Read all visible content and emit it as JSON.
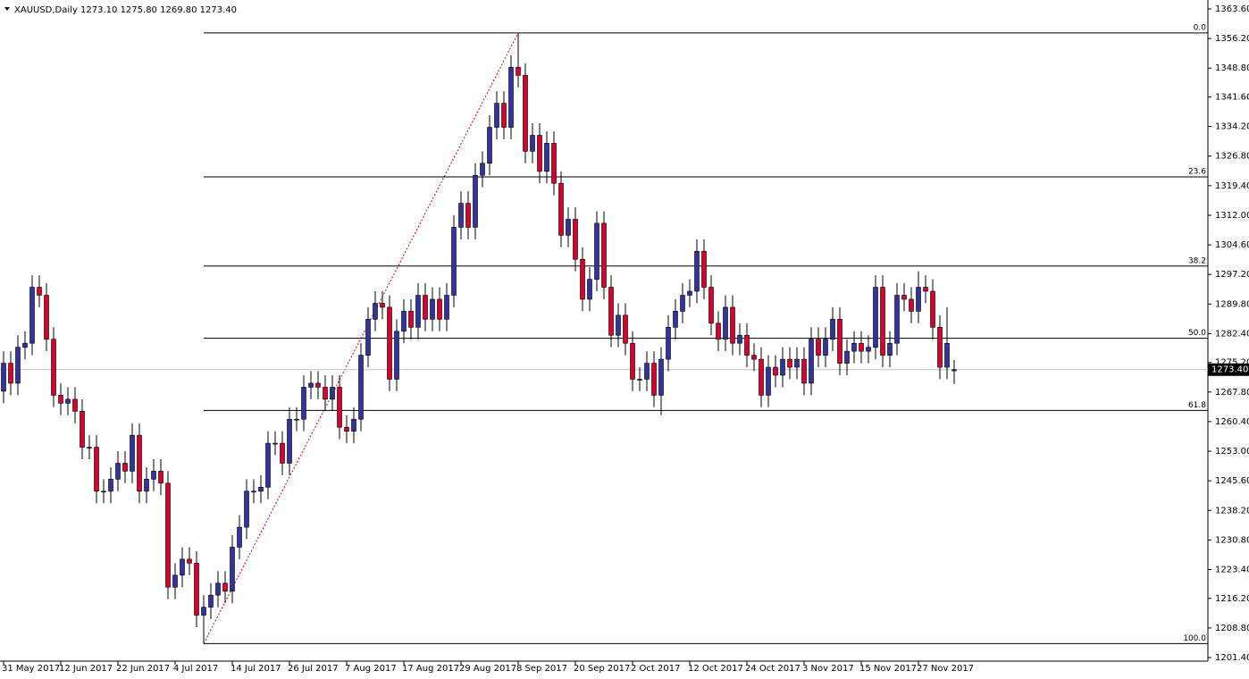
{
  "chart_data": {
    "type": "candlestick",
    "title": "XAUUSD,Daily  1273.10 1275.80 1269.80 1273.40",
    "up_color": "#33339c",
    "down_color": "#d8002d",
    "categories": [
      "31 May 2017",
      null,
      null,
      null,
      null,
      null,
      null,
      null,
      "12 Jun 2017",
      null,
      null,
      null,
      null,
      null,
      null,
      null,
      "22 Jun 2017",
      null,
      null,
      null,
      null,
      null,
      null,
      null,
      "4 Jul 2017",
      null,
      null,
      null,
      null,
      null,
      null,
      null,
      "14 Jul 2017",
      null,
      null,
      null,
      null,
      null,
      null,
      null,
      "26 Jul 2017",
      null,
      null,
      null,
      null,
      null,
      null,
      null,
      "7 Aug 2017",
      null,
      null,
      null,
      null,
      null,
      null,
      null,
      "17 Aug 2017",
      null,
      null,
      null,
      null,
      null,
      null,
      null,
      "29 Aug 2017",
      null,
      null,
      null,
      null,
      null,
      null,
      null,
      "8 Sep 2017",
      null,
      null,
      null,
      null,
      null,
      null,
      null,
      "20 Sep 2017",
      null,
      null,
      null,
      null,
      null,
      null,
      null,
      "2 Oct 2017",
      null,
      null,
      null,
      null,
      null,
      null,
      null,
      "12 Oct 2017",
      null,
      null,
      null,
      null,
      null,
      null,
      null,
      "24 Oct 2017",
      null,
      null,
      null,
      null,
      null,
      null,
      null,
      "3 Nov 2017",
      null,
      null,
      null,
      null,
      null,
      null,
      null,
      "15 Nov 2017",
      null,
      null,
      null,
      null,
      null,
      null,
      null,
      "27 Nov 2017",
      null,
      null,
      null,
      null,
      null
    ],
    "ohlc": {
      "open": [
        1268,
        1275,
        1270,
        1279,
        1280,
        1294,
        1292,
        1281,
        1267,
        1265,
        1266,
        1263,
        1254,
        1254,
        1243,
        1243,
        1246,
        1250,
        1248,
        1257,
        1243,
        1246,
        1248,
        1245,
        1219,
        1222,
        1226,
        1225,
        1212,
        1214,
        1217,
        1220,
        1218,
        1229,
        1234,
        1243,
        1243,
        1244,
        1255,
        1255,
        1250,
        1261,
        1261,
        1269,
        1270,
        1269,
        1266,
        1269,
        1259,
        1258,
        1261,
        1277,
        1286,
        1290,
        1289,
        1271,
        1283,
        1288,
        1284,
        1292,
        1286,
        1291,
        1286,
        1292,
        1309,
        1315,
        1309,
        1322,
        1325,
        1334,
        1340,
        1334,
        1349,
        1347,
        1328,
        1332,
        1323,
        1330,
        1320,
        1307,
        1311,
        1301,
        1291,
        1296,
        1310,
        1294,
        1282,
        1287,
        1280,
        1271,
        1271,
        1275,
        1267,
        1276,
        1284,
        1288,
        1292,
        1293,
        1303,
        1294,
        1285,
        1281,
        1289,
        1280,
        1282,
        1277,
        1276,
        1267,
        1274,
        1272,
        1276,
        1274,
        1276,
        1270,
        1281,
        1277,
        1281,
        1286,
        1275,
        1278,
        1280,
        1278,
        1279,
        1294,
        1277,
        1280,
        1292,
        1291,
        1288,
        1294,
        1293,
        1284,
        1274,
        1273.1
      ],
      "high": [
        1278,
        1278,
        1282,
        1283,
        1297,
        1297,
        1295,
        1284,
        1270,
        1269,
        1269,
        1266,
        1257,
        1257,
        1246,
        1249,
        1253,
        1253,
        1260,
        1260,
        1249,
        1251,
        1251,
        1248,
        1225,
        1229,
        1229,
        1228,
        1217,
        1220,
        1223,
        1223,
        1232,
        1237,
        1246,
        1246,
        1247,
        1258,
        1258,
        1258,
        1264,
        1264,
        1272,
        1273,
        1273,
        1272,
        1272,
        1272,
        1262,
        1264,
        1280,
        1289,
        1293,
        1293,
        1292,
        1286,
        1291,
        1291,
        1295,
        1295,
        1294,
        1294,
        1295,
        1312,
        1318,
        1318,
        1325,
        1328,
        1337,
        1343,
        1343,
        1352,
        1357.6,
        1350,
        1335,
        1335,
        1333,
        1333,
        1323,
        1314,
        1314,
        1304,
        1299,
        1313,
        1313,
        1297,
        1290,
        1290,
        1283,
        1274,
        1278,
        1278,
        1279,
        1287,
        1291,
        1295,
        1296,
        1306,
        1306,
        1297,
        1288,
        1292,
        1292,
        1285,
        1285,
        1280,
        1279,
        1277,
        1277,
        1279,
        1279,
        1279,
        1279,
        1284,
        1284,
        1284,
        1289,
        1289,
        1281,
        1283,
        1283,
        1282,
        1297,
        1297,
        1283,
        1295,
        1295,
        1294,
        1298,
        1297,
        1296,
        1287,
        1289,
        1275.8
      ],
      "low": [
        1265,
        1267,
        1267,
        1276,
        1277,
        1289,
        1278,
        1264,
        1262,
        1262,
        1260,
        1251,
        1251,
        1240,
        1240,
        1240,
        1243,
        1245,
        1245,
        1240,
        1240,
        1243,
        1242,
        1216,
        1216,
        1219,
        1222,
        1209,
        1204.9,
        1211,
        1214,
        1215,
        1215,
        1226,
        1231,
        1240,
        1240,
        1241,
        1252,
        1247,
        1247,
        1258,
        1258,
        1266,
        1266,
        1263,
        1263,
        1256,
        1255,
        1255,
        1258,
        1274,
        1283,
        1286,
        1268,
        1268,
        1280,
        1281,
        1281,
        1283,
        1283,
        1283,
        1283,
        1289,
        1306,
        1306,
        1306,
        1319,
        1322,
        1331,
        1331,
        1331,
        1344,
        1325,
        1325,
        1320,
        1320,
        1317,
        1304,
        1304,
        1298,
        1288,
        1288,
        1293,
        1291,
        1279,
        1279,
        1277,
        1268,
        1268,
        1268,
        1264,
        1262,
        1273,
        1281,
        1285,
        1289,
        1290,
        1291,
        1282,
        1278,
        1278,
        1277,
        1277,
        1274,
        1273,
        1264,
        1264,
        1269,
        1269,
        1271,
        1271,
        1267,
        1267,
        1274,
        1274,
        1278,
        1272,
        1272,
        1275,
        1275,
        1275,
        1276,
        1274,
        1274,
        1277,
        1288,
        1285,
        1285,
        1290,
        1281,
        1271,
        1271,
        1269.8
      ],
      "close": [
        1275,
        1270,
        1279,
        1280,
        1294,
        1292,
        1281,
        1267,
        1265,
        1266,
        1263,
        1254,
        1254,
        1243,
        1243,
        1246,
        1250,
        1248,
        1257,
        1243,
        1246,
        1248,
        1245,
        1219,
        1222,
        1226,
        1225,
        1212,
        1214,
        1217,
        1220,
        1218,
        1229,
        1234,
        1243,
        1243,
        1244,
        1255,
        1255,
        1250,
        1261,
        1261,
        1269,
        1270,
        1269,
        1266,
        1269,
        1259,
        1258,
        1261,
        1277,
        1286,
        1290,
        1289,
        1271,
        1283,
        1288,
        1284,
        1292,
        1286,
        1291,
        1286,
        1292,
        1309,
        1315,
        1309,
        1322,
        1325,
        1334,
        1340,
        1334,
        1349,
        1347,
        1328,
        1332,
        1323,
        1330,
        1320,
        1307,
        1311,
        1301,
        1291,
        1296,
        1310,
        1294,
        1282,
        1287,
        1280,
        1271,
        1271,
        1275,
        1267,
        1276,
        1284,
        1288,
        1292,
        1293,
        1303,
        1294,
        1285,
        1281,
        1289,
        1280,
        1282,
        1277,
        1276,
        1267,
        1274,
        1272,
        1276,
        1274,
        1276,
        1270,
        1281,
        1277,
        1281,
        1286,
        1275,
        1278,
        1280,
        1278,
        1279,
        1294,
        1277,
        1280,
        1292,
        1291,
        1288,
        1294,
        1293,
        1284,
        1274,
        1280,
        1273.4
      ]
    },
    "ylim": [
      1201.4,
      1363.6
    ],
    "yticks": [
      {
        "value": 1363.6,
        "label": "1363.60"
      },
      {
        "value": 1356.2,
        "label": "1356.20"
      },
      {
        "value": 1348.8,
        "label": "1348.80"
      },
      {
        "value": 1341.6,
        "label": "1341.60"
      },
      {
        "value": 1334.2,
        "label": "1334.20"
      },
      {
        "value": 1326.8,
        "label": "1326.80"
      },
      {
        "value": 1319.4,
        "label": "1319.40"
      },
      {
        "value": 1312,
        "label": "1312.00"
      },
      {
        "value": 1304.6,
        "label": "1304.60"
      },
      {
        "value": 1297.2,
        "label": "1297.20"
      },
      {
        "value": 1289.8,
        "label": "1289.80"
      },
      {
        "value": 1282.4,
        "label": "1282.40"
      },
      {
        "value": 1275.2,
        "label": "1275.20"
      },
      {
        "value": 1267.8,
        "label": "1267.80"
      },
      {
        "value": 1260.4,
        "label": "1260.40"
      },
      {
        "value": 1253,
        "label": "1253.00"
      },
      {
        "value": 1245.6,
        "label": "1245.60"
      },
      {
        "value": 1238.2,
        "label": "1238.20"
      },
      {
        "value": 1230.8,
        "label": "1230.80"
      },
      {
        "value": 1223.4,
        "label": "1223.40"
      },
      {
        "value": 1216.2,
        "label": "1216.20"
      },
      {
        "value": 1208.8,
        "label": "1208.80"
      },
      {
        "value": 1201.4,
        "label": "1201.40"
      }
    ],
    "last_price": {
      "value": 1273.4,
      "label": "1273.40"
    },
    "fib_levels": [
      {
        "value": 1357.6,
        "label": "0.0"
      },
      {
        "value": 1321.6,
        "label": "23.6"
      },
      {
        "value": 1299.3,
        "label": "38.2"
      },
      {
        "value": 1281.25,
        "label": "50.0"
      },
      {
        "value": 1263.2,
        "label": "61.8"
      },
      {
        "value": 1204.9,
        "label": "100.0"
      }
    ]
  }
}
